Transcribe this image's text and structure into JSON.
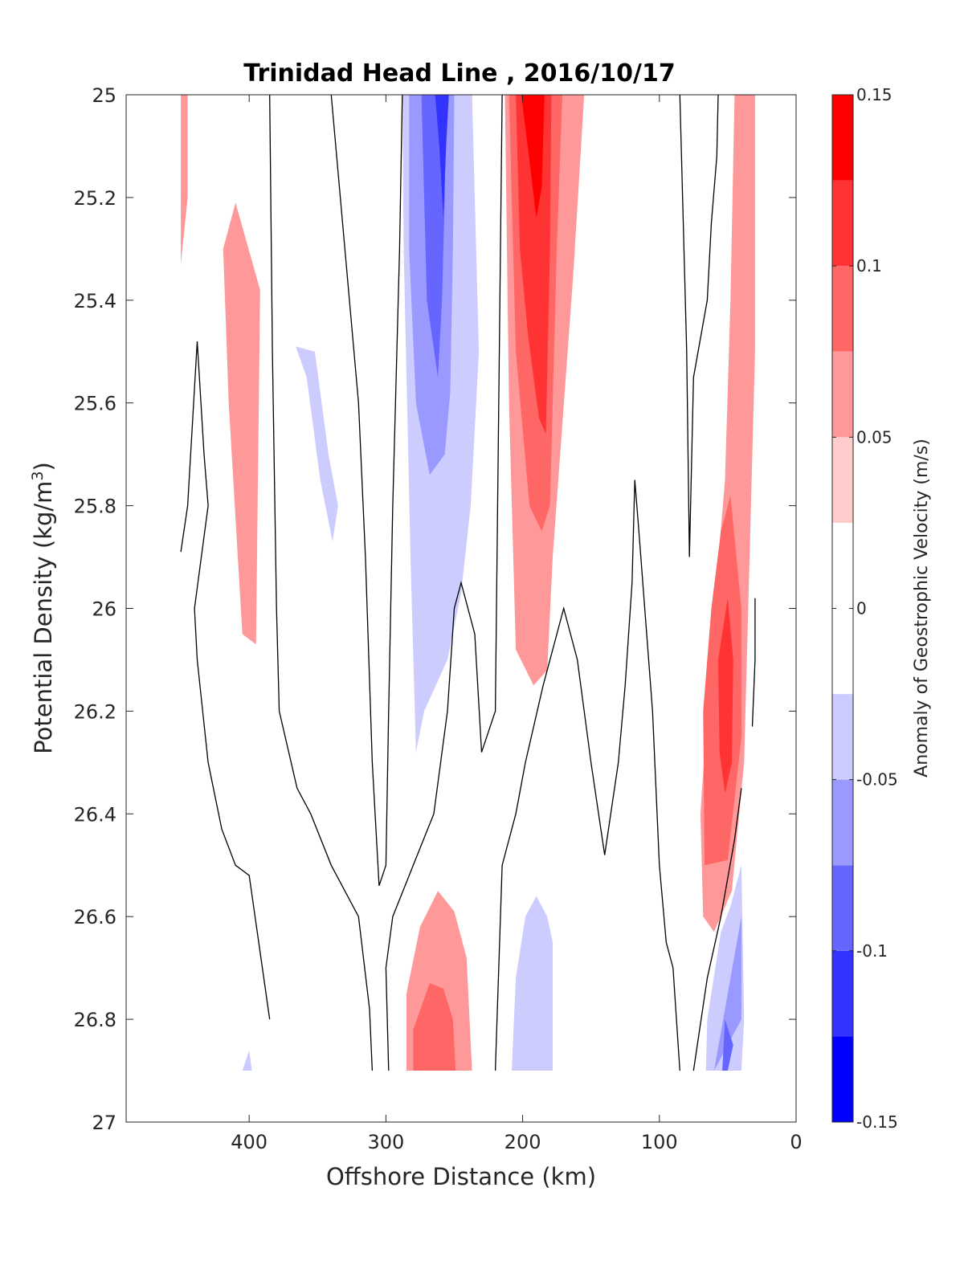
{
  "chart_data": {
    "type": "heatmap",
    "subtype": "filled contour section",
    "title": "Trinidad Head Line , 2016/10/17",
    "xlabel": "Offshore Distance (km)",
    "ylabel": "Potential Density (kg/m3)",
    "ylabel_parts": {
      "main": "Potential Density (kg/m",
      "sup": "3",
      "close": ")"
    },
    "xlim": [
      490,
      0
    ],
    "ylim": [
      25,
      27
    ],
    "x_reversed": true,
    "y_reversed": true,
    "xticks": [
      {
        "value": 400,
        "label": "400"
      },
      {
        "value": 300,
        "label": "300"
      },
      {
        "value": 200,
        "label": "200"
      },
      {
        "value": 100,
        "label": "100"
      },
      {
        "value": 0,
        "label": "0"
      }
    ],
    "yticks": [
      {
        "value": 25,
        "label": "25"
      },
      {
        "value": 25.2,
        "label": "25.2"
      },
      {
        "value": 25.4,
        "label": "25.4"
      },
      {
        "value": 25.6,
        "label": "25.6"
      },
      {
        "value": 25.8,
        "label": "25.8"
      },
      {
        "value": 26,
        "label": "26"
      },
      {
        "value": 26.2,
        "label": "26.2"
      },
      {
        "value": 26.4,
        "label": "26.4"
      },
      {
        "value": 26.6,
        "label": "26.6"
      },
      {
        "value": 26.8,
        "label": "26.8"
      },
      {
        "value": 27,
        "label": "27"
      }
    ],
    "grid": false,
    "data_ymax": 26.9,
    "colorbar": {
      "label": "Anomaly of Geostrophic Velocity (m/s)",
      "range": [
        -0.15,
        0.15
      ],
      "levels": [
        -0.15,
        -0.125,
        -0.1,
        -0.075,
        -0.05,
        -0.025,
        0.025,
        0.05,
        0.075,
        0.1,
        0.125,
        0.15
      ],
      "colors": [
        "#0000ff",
        "#3333ff",
        "#6666ff",
        "#9999ff",
        "#ccccff",
        "#ffffff",
        "#ffcccc",
        "#ff9999",
        "#ff6666",
        "#ff3333",
        "#ff0000"
      ],
      "ticks": [
        {
          "value": 0.15,
          "label": "0.15"
        },
        {
          "value": 0.1,
          "label": "0.1"
        },
        {
          "value": 0.05,
          "label": "0.05"
        },
        {
          "value": 0,
          "label": "0"
        },
        {
          "value": -0.05,
          "label": "-0.05"
        },
        {
          "value": -0.1,
          "label": "-0.1"
        },
        {
          "value": -0.15,
          "label": "-0.15"
        }
      ]
    },
    "filled_regions": [
      {
        "name": "pos-a",
        "level": 0.05,
        "points": [
          [
            450,
            25
          ],
          [
            445,
            25
          ],
          [
            445,
            25.2
          ],
          [
            450,
            25.33
          ]
        ]
      },
      {
        "name": "pos-b",
        "level": 0.05,
        "points": [
          [
            410,
            25.21
          ],
          [
            392,
            25.38
          ],
          [
            395,
            26.07
          ],
          [
            405,
            26.05
          ],
          [
            415,
            25.6
          ],
          [
            419,
            25.3
          ]
        ]
      },
      {
        "name": "neg-c",
        "level": -0.05,
        "points": [
          [
            366,
            25.49
          ],
          [
            352,
            25.5
          ],
          [
            342,
            25.7
          ],
          [
            335,
            25.8
          ],
          [
            339,
            25.87
          ],
          [
            348,
            25.75
          ],
          [
            358,
            25.55
          ],
          [
            362,
            25.52
          ]
        ]
      },
      {
        "name": "neg-d",
        "level": -0.05,
        "points": [
          [
            288,
            25
          ],
          [
            237,
            25
          ],
          [
            232,
            25.5
          ],
          [
            238,
            25.8
          ],
          [
            245,
            25.97
          ],
          [
            255,
            26.1
          ],
          [
            272,
            26.2
          ],
          [
            278,
            26.28
          ],
          [
            282,
            25.9
          ],
          [
            287,
            25.3
          ]
        ]
      },
      {
        "name": "neg-d2",
        "level": -0.075,
        "points": [
          [
            283,
            25
          ],
          [
            250,
            25
          ],
          [
            251,
            25.3
          ],
          [
            253,
            25.58
          ],
          [
            257,
            25.7
          ],
          [
            268,
            25.74
          ],
          [
            278,
            25.6
          ],
          [
            283,
            25.3
          ]
        ]
      },
      {
        "name": "neg-d3",
        "level": -0.1,
        "points": [
          [
            274,
            25
          ],
          [
            256,
            25
          ],
          [
            257,
            25.2
          ],
          [
            259,
            25.4
          ],
          [
            262,
            25.55
          ],
          [
            270,
            25.4
          ]
        ]
      },
      {
        "name": "neg-d4",
        "level": -0.125,
        "points": [
          [
            264,
            25
          ],
          [
            254,
            25
          ],
          [
            256,
            25.1
          ],
          [
            258,
            25.24
          ],
          [
            261,
            25.1
          ]
        ]
      },
      {
        "name": "pos-e",
        "level": 0.05,
        "points": [
          [
            213,
            25
          ],
          [
            155,
            25
          ],
          [
            163,
            25.35
          ],
          [
            178,
            25.9
          ],
          [
            182,
            26.12
          ],
          [
            192,
            26.15
          ],
          [
            205,
            26.08
          ],
          [
            210,
            25.6
          ]
        ]
      },
      {
        "name": "pos-e2",
        "level": 0.075,
        "points": [
          [
            210,
            25
          ],
          [
            171,
            25
          ],
          [
            175,
            25.3
          ],
          [
            180,
            25.8
          ],
          [
            186,
            25.85
          ],
          [
            195,
            25.8
          ],
          [
            205,
            25.5
          ],
          [
            208,
            25.2
          ]
        ]
      },
      {
        "name": "pos-e3",
        "level": 0.1,
        "points": [
          [
            205,
            25
          ],
          [
            179,
            25
          ],
          [
            180,
            25.3
          ],
          [
            183,
            25.66
          ],
          [
            188,
            25.63
          ],
          [
            196,
            25.47
          ],
          [
            202,
            25.3
          ]
        ]
      },
      {
        "name": "pos-e4",
        "level": 0.125,
        "points": [
          [
            201,
            25
          ],
          [
            184,
            25
          ],
          [
            186,
            25.18
          ],
          [
            190,
            25.24
          ],
          [
            194,
            25.15
          ]
        ]
      },
      {
        "name": "pos-f",
        "level": 0.05,
        "points": [
          [
            30,
            25
          ],
          [
            45,
            25
          ],
          [
            48,
            25.4
          ],
          [
            52,
            25.75
          ],
          [
            60,
            26
          ],
          [
            70,
            26.4
          ],
          [
            68,
            26.6
          ],
          [
            60,
            26.63
          ],
          [
            47,
            26.55
          ],
          [
            38,
            26.3
          ],
          [
            34,
            25.9
          ],
          [
            30,
            25.5
          ]
        ]
      },
      {
        "name": "pos-f2",
        "level": 0.075,
        "points": [
          [
            48,
            25.78
          ],
          [
            55,
            25.85
          ],
          [
            62,
            26
          ],
          [
            68,
            26.2
          ],
          [
            67,
            26.5
          ],
          [
            50,
            26.49
          ],
          [
            40,
            26.25
          ],
          [
            40,
            26
          ]
        ]
      },
      {
        "name": "pos-f3",
        "level": 0.1,
        "points": [
          [
            50,
            25.98
          ],
          [
            57,
            26.1
          ],
          [
            56,
            26.28
          ],
          [
            52,
            26.36
          ],
          [
            47,
            26.3
          ],
          [
            46,
            26.1
          ]
        ]
      },
      {
        "name": "neg-g",
        "level": -0.05,
        "points": [
          [
            40,
            26.5
          ],
          [
            38,
            26.8
          ],
          [
            40,
            26.9
          ],
          [
            66,
            26.9
          ],
          [
            65,
            26.8
          ],
          [
            55,
            26.63
          ],
          [
            48,
            26.58
          ]
        ]
      },
      {
        "name": "neg-g2",
        "level": -0.075,
        "points": [
          [
            40,
            26.6
          ],
          [
            40,
            26.8
          ],
          [
            60,
            26.9
          ],
          [
            50,
            26.75
          ]
        ]
      },
      {
        "name": "neg-g3",
        "level": -0.1,
        "points": [
          [
            46,
            26.85
          ],
          [
            50,
            26.9
          ],
          [
            54,
            26.9
          ],
          [
            52,
            26.8
          ]
        ]
      },
      {
        "name": "pos-h",
        "level": 0.05,
        "points": [
          [
            285,
            26.9
          ],
          [
            237,
            26.9
          ],
          [
            241,
            26.68
          ],
          [
            250,
            26.59
          ],
          [
            262,
            26.55
          ],
          [
            275,
            26.62
          ],
          [
            285,
            26.75
          ]
        ]
      },
      {
        "name": "pos-h2",
        "level": 0.075,
        "points": [
          [
            280,
            26.9
          ],
          [
            249,
            26.9
          ],
          [
            251,
            26.8
          ],
          [
            258,
            26.74
          ],
          [
            268,
            26.73
          ],
          [
            280,
            26.82
          ]
        ]
      },
      {
        "name": "neg-i",
        "level": -0.05,
        "points": [
          [
            208,
            26.9
          ],
          [
            178,
            26.9
          ],
          [
            178,
            26.65
          ],
          [
            182,
            26.6
          ],
          [
            190,
            26.56
          ],
          [
            198,
            26.6
          ],
          [
            205,
            26.72
          ]
        ]
      },
      {
        "name": "neg-j",
        "level": -0.05,
        "points": [
          [
            405,
            26.9
          ],
          [
            398,
            26.9
          ],
          [
            400,
            26.86
          ]
        ]
      }
    ],
    "zero_contours": [
      {
        "name": "c1",
        "points": [
          [
            450,
            25.89
          ],
          [
            445,
            25.8
          ],
          [
            438,
            25.48
          ],
          [
            433,
            25.7
          ],
          [
            430,
            25.8
          ],
          [
            440,
            26
          ],
          [
            438,
            26.1
          ],
          [
            430,
            26.3
          ],
          [
            420,
            26.43
          ],
          [
            410,
            26.5
          ],
          [
            400,
            26.52
          ],
          [
            385,
            26.8
          ]
        ]
      },
      {
        "name": "c2",
        "points": [
          [
            385,
            25
          ],
          [
            383,
            25.5
          ],
          [
            380,
            26
          ],
          [
            378,
            26.2
          ],
          [
            365,
            26.35
          ],
          [
            355,
            26.4
          ],
          [
            340,
            26.5
          ],
          [
            320,
            26.6
          ],
          [
            312,
            26.78
          ],
          [
            310,
            26.9
          ]
        ]
      },
      {
        "name": "c3",
        "points": [
          [
            340,
            25
          ],
          [
            330,
            25.3
          ],
          [
            320,
            25.6
          ],
          [
            315,
            25.9
          ],
          [
            310,
            26.3
          ],
          [
            305,
            26.54
          ],
          [
            300,
            26.5
          ],
          [
            298,
            26.2
          ],
          [
            295,
            25.8
          ],
          [
            290,
            25.3
          ],
          [
            288,
            25
          ]
        ]
      },
      {
        "name": "c4",
        "points": [
          [
            298,
            26.9
          ],
          [
            300,
            26.7
          ],
          [
            295,
            26.6
          ],
          [
            280,
            26.5
          ],
          [
            265,
            26.4
          ],
          [
            255,
            26.2
          ],
          [
            250,
            26
          ],
          [
            245,
            25.95
          ],
          [
            235,
            26.05
          ],
          [
            230,
            26.28
          ],
          [
            220,
            26.2
          ],
          [
            215,
            25
          ]
        ]
      },
      {
        "name": "c5",
        "points": [
          [
            220,
            26.9
          ],
          [
            215,
            26.5
          ],
          [
            205,
            26.4
          ],
          [
            198,
            26.3
          ],
          [
            185,
            26.15
          ],
          [
            170,
            26
          ],
          [
            160,
            26.1
          ],
          [
            150,
            26.3
          ],
          [
            140,
            26.48
          ],
          [
            130,
            26.3
          ],
          [
            125,
            26.15
          ],
          [
            120,
            25.95
          ],
          [
            118,
            25.75
          ],
          [
            115,
            25.85
          ],
          [
            105,
            26.2
          ],
          [
            100,
            26.5
          ],
          [
            95,
            26.65
          ],
          [
            90,
            26.7
          ],
          [
            85,
            26.9
          ]
        ]
      },
      {
        "name": "c6",
        "points": [
          [
            85,
            25
          ],
          [
            80,
            25.5
          ],
          [
            78,
            25.9
          ],
          [
            75,
            25.55
          ],
          [
            65,
            25.4
          ],
          [
            62,
            25.25
          ],
          [
            58,
            25.12
          ],
          [
            57,
            25
          ]
        ]
      },
      {
        "name": "c7",
        "points": [
          [
            75,
            26.9
          ],
          [
            65,
            26.72
          ],
          [
            55,
            26.6
          ],
          [
            45,
            26.45
          ],
          [
            40,
            26.35
          ]
        ]
      },
      {
        "name": "c8",
        "points": [
          [
            30,
            25.98
          ],
          [
            30,
            26.1
          ],
          [
            32,
            26.23
          ]
        ]
      }
    ]
  }
}
